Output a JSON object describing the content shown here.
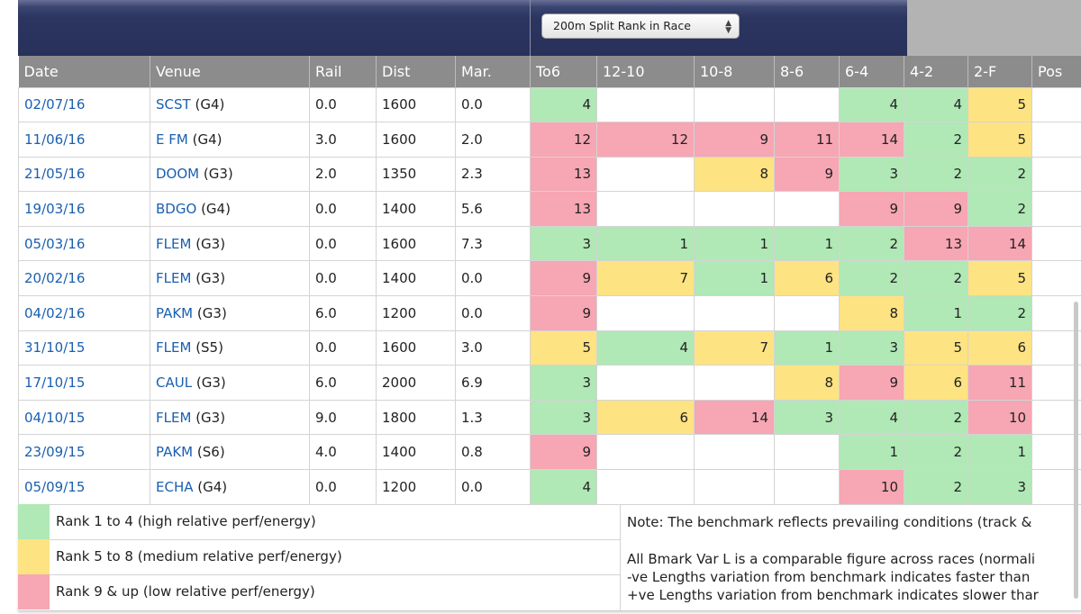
{
  "selector": {
    "value": "200m Split Rank in Race"
  },
  "columns": [
    "Date",
    "Venue",
    "Rail",
    "Dist",
    "Mar.",
    "To6",
    "12-10",
    "10-8",
    "8-6",
    "6-4",
    "4-2",
    "2-F",
    "Pos"
  ],
  "rows": [
    {
      "date": "02/07/16",
      "venue": "SCST",
      "grade": "(G4)",
      "rail": "0.0",
      "dist": "1600",
      "mar": "0.0",
      "splits": [
        4,
        null,
        null,
        null,
        4,
        4,
        5
      ],
      "pos": ""
    },
    {
      "date": "11/06/16",
      "venue": "E FM",
      "grade": "(G4)",
      "rail": "3.0",
      "dist": "1600",
      "mar": "2.0",
      "splits": [
        12,
        12,
        9,
        11,
        14,
        2,
        5
      ],
      "pos": ""
    },
    {
      "date": "21/05/16",
      "venue": "DOOM",
      "grade": "(G3)",
      "rail": "2.0",
      "dist": "1350",
      "mar": "2.3",
      "splits": [
        13,
        null,
        8,
        9,
        3,
        2,
        2
      ],
      "pos": ""
    },
    {
      "date": "19/03/16",
      "venue": "BDGO",
      "grade": "(G4)",
      "rail": "0.0",
      "dist": "1400",
      "mar": "5.6",
      "splits": [
        13,
        null,
        null,
        null,
        9,
        9,
        2
      ],
      "pos": ""
    },
    {
      "date": "05/03/16",
      "venue": "FLEM",
      "grade": "(G3)",
      "rail": "0.0",
      "dist": "1600",
      "mar": "7.3",
      "splits": [
        3,
        1,
        1,
        1,
        2,
        13,
        14
      ],
      "pos": ""
    },
    {
      "date": "20/02/16",
      "venue": "FLEM",
      "grade": "(G3)",
      "rail": "0.0",
      "dist": "1400",
      "mar": "0.0",
      "splits": [
        9,
        7,
        1,
        6,
        2,
        2,
        5
      ],
      "pos": ""
    },
    {
      "date": "04/02/16",
      "venue": "PAKM",
      "grade": "(G3)",
      "rail": "6.0",
      "dist": "1200",
      "mar": "0.0",
      "splits": [
        9,
        null,
        null,
        null,
        8,
        1,
        2
      ],
      "pos": ""
    },
    {
      "date": "31/10/15",
      "venue": "FLEM",
      "grade": "(S5)",
      "rail": "0.0",
      "dist": "1600",
      "mar": "3.0",
      "splits": [
        5,
        4,
        7,
        1,
        3,
        5,
        6
      ],
      "pos": ""
    },
    {
      "date": "17/10/15",
      "venue": "CAUL",
      "grade": "(G3)",
      "rail": "6.0",
      "dist": "2000",
      "mar": "6.9",
      "splits": [
        3,
        null,
        null,
        8,
        9,
        6,
        11
      ],
      "pos": ""
    },
    {
      "date": "04/10/15",
      "venue": "FLEM",
      "grade": "(G3)",
      "rail": "9.0",
      "dist": "1800",
      "mar": "1.3",
      "splits": [
        3,
        6,
        14,
        3,
        4,
        2,
        10
      ],
      "pos": ""
    },
    {
      "date": "23/09/15",
      "venue": "PAKM",
      "grade": "(S6)",
      "rail": "4.0",
      "dist": "1400",
      "mar": "0.8",
      "splits": [
        9,
        null,
        null,
        null,
        1,
        2,
        1
      ],
      "pos": ""
    },
    {
      "date": "05/09/15",
      "venue": "ECHA",
      "grade": "(G4)",
      "rail": "0.0",
      "dist": "1200",
      "mar": "0.0",
      "splits": [
        4,
        null,
        null,
        null,
        10,
        2,
        3
      ],
      "pos": ""
    }
  ],
  "legend": [
    {
      "label": "Rank 1 to 4 (high relative perf/energy)",
      "color": "#b0e8b6"
    },
    {
      "label": "Rank 5 to 8 (medium relative perf/energy)",
      "color": "#fde382"
    },
    {
      "label": "Rank 9 & up (low relative perf/energy)",
      "color": "#f7a6b3"
    }
  ],
  "notes": [
    "Note: The benchmark reflects prevailing conditions (track &",
    "All Bmark Var L is a comparable figure across races (normali",
    "-ve Lengths variation from benchmark indicates faster than",
    "+ve Lengths variation from benchmark indicates slower thar"
  ]
}
